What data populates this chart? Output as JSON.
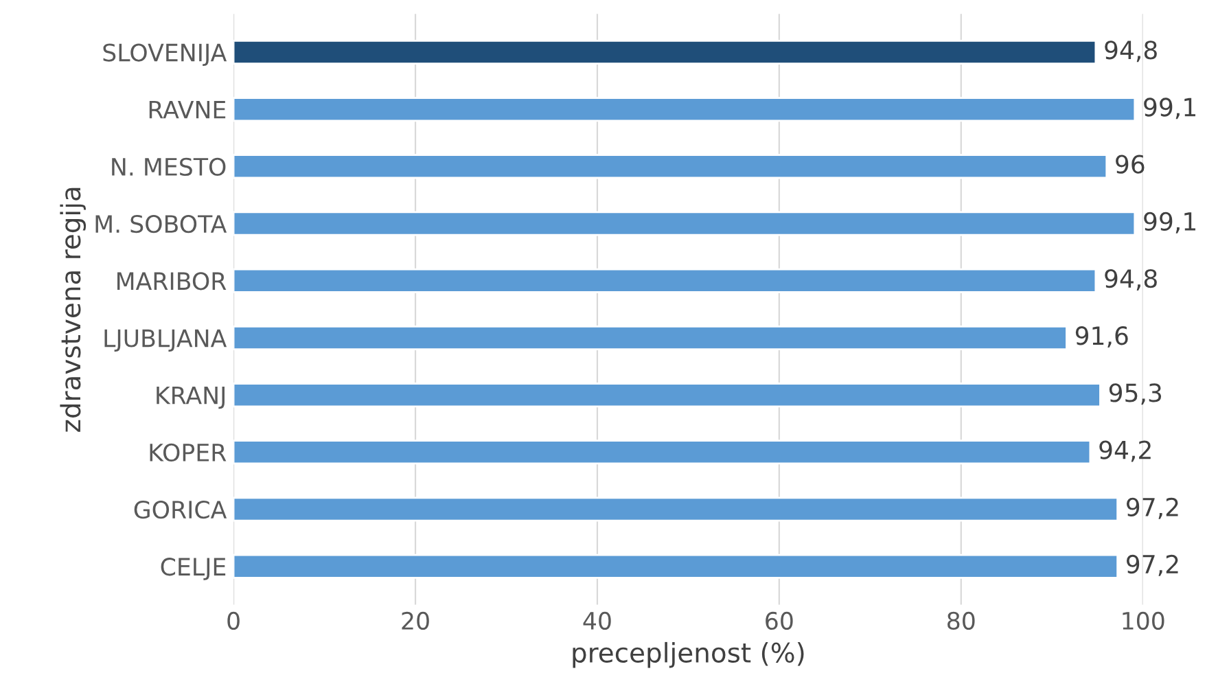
{
  "chart_data": {
    "type": "bar",
    "orientation": "horizontal",
    "xlabel": "precepljenost (%)",
    "ylabel": "zdravstvena regija",
    "categories": [
      "SLOVENIJA",
      "RAVNE",
      "N. MESTO",
      "M. SOBOTA",
      "MARIBOR",
      "LJUBLJANA",
      "KRANJ",
      "KOPER",
      "GORICA",
      "CELJE"
    ],
    "values": [
      94.8,
      99.1,
      96,
      99.1,
      94.8,
      91.6,
      95.3,
      94.2,
      97.2,
      97.2
    ],
    "value_labels": [
      "94,8",
      "99,1",
      "96",
      "99,1",
      "94,8",
      "91,6",
      "95,3",
      "94,2",
      "97,2",
      "97,2"
    ],
    "colors": [
      "#1f4e79",
      "#5b9bd5",
      "#5b9bd5",
      "#5b9bd5",
      "#5b9bd5",
      "#5b9bd5",
      "#5b9bd5",
      "#5b9bd5",
      "#5b9bd5",
      "#5b9bd5"
    ],
    "xlim": [
      0,
      100
    ],
    "xticks": [
      0,
      20,
      40,
      60,
      80,
      100
    ],
    "grid": "x"
  }
}
